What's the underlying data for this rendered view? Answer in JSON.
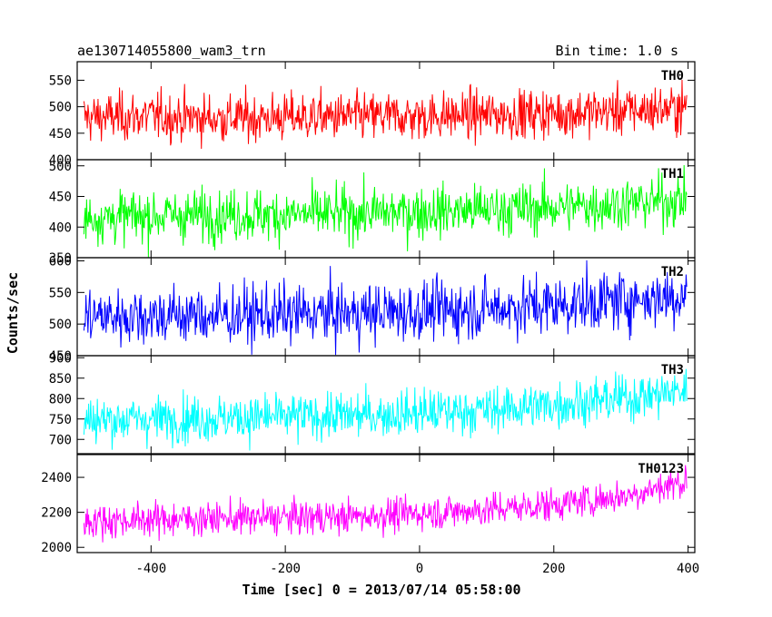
{
  "chart_data": {
    "type": "line",
    "title": "ae130714055800_wam3_trn",
    "subtitle": "Bin time: 1.0 s",
    "xlabel": "Time [sec] 0 = 2013/07/14 05:58:00",
    "ylabel": "Counts/sec",
    "xlim": [
      -510,
      410
    ],
    "x_ticks": [
      -400,
      -200,
      0,
      200,
      400
    ],
    "panels": [
      {
        "name": "TH0",
        "color": "#ff0000",
        "ylim": [
          400,
          585
        ],
        "y_ticks": [
          400,
          450,
          500,
          550
        ],
        "x": [
          -500,
          -400,
          -300,
          -200,
          -100,
          0,
          100,
          200,
          300,
          400
        ],
        "values": [
          480,
          482,
          478,
          480,
          481,
          482,
          485,
          488,
          492,
          498
        ]
      },
      {
        "name": "TH1",
        "color": "#00ff00",
        "ylim": [
          350,
          510
        ],
        "y_ticks": [
          350,
          400,
          450,
          500
        ],
        "x": [
          -500,
          -400,
          -300,
          -200,
          -100,
          0,
          100,
          200,
          300,
          400
        ],
        "values": [
          415,
          418,
          420,
          420,
          422,
          425,
          428,
          432,
          438,
          445
        ]
      },
      {
        "name": "TH2",
        "color": "#0000ff",
        "ylim": [
          450,
          605
        ],
        "y_ticks": [
          450,
          500,
          550,
          600
        ],
        "x": [
          -500,
          -400,
          -300,
          -200,
          -100,
          0,
          100,
          200,
          300,
          400
        ],
        "values": [
          512,
          514,
          513,
          515,
          517,
          520,
          525,
          530,
          538,
          545
        ]
      },
      {
        "name": "TH3",
        "color": "#00ffff",
        "ylim": [
          665,
          905
        ],
        "y_ticks": [
          700,
          750,
          800,
          850,
          900
        ],
        "x": [
          -500,
          -400,
          -300,
          -200,
          -100,
          0,
          100,
          200,
          300,
          400
        ],
        "values": [
          748,
          750,
          752,
          755,
          758,
          765,
          772,
          785,
          800,
          820
        ]
      },
      {
        "name": "TH0123",
        "color": "#ff00ff",
        "ylim": [
          1970,
          2530
        ],
        "y_ticks": [
          2000,
          2200,
          2400
        ],
        "x": [
          -500,
          -400,
          -300,
          -200,
          -100,
          0,
          100,
          200,
          300,
          400
        ],
        "values": [
          2150,
          2160,
          2165,
          2170,
          2175,
          2195,
          2215,
          2245,
          2290,
          2380
        ]
      }
    ]
  }
}
